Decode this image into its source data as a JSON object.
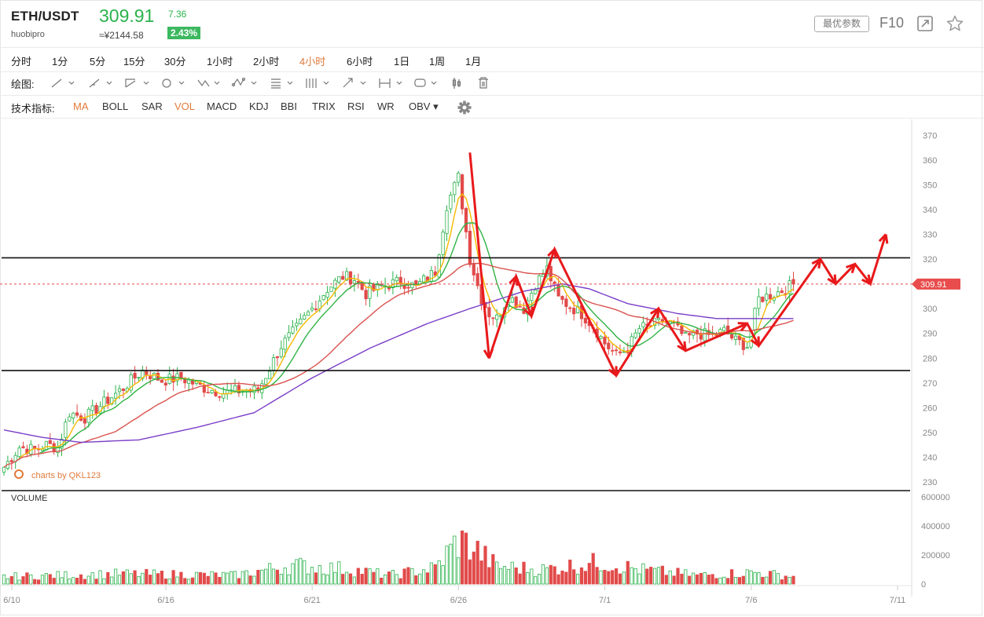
{
  "header": {
    "pair": "ETH/USDT",
    "exchange": "huobipro",
    "price": "309.91",
    "cny_price": "≈¥2144.58",
    "change": "7.36",
    "change_pct": "2.43%",
    "params_button": "最优参数",
    "f10_label": "F10"
  },
  "timeframes": [
    "分时",
    "1分",
    "5分",
    "15分",
    "30分",
    "1小时",
    "2小时",
    "4小时",
    "6小时",
    "1日",
    "1周",
    "1月"
  ],
  "active_timeframe": "4小时",
  "drawing_label": "绘图:",
  "indicators_label": "技术指标:",
  "indicators": [
    "MA",
    "BOLL",
    "SAR",
    "VOL",
    "MACD",
    "KDJ",
    "BBI",
    "TRIX",
    "RSI",
    "WR",
    "OBV"
  ],
  "active_indicators": [
    "MA",
    "VOL"
  ],
  "watermark": "charts by QKL123",
  "volume_label": "VOLUME",
  "colors": {
    "up": "#2bb24c",
    "down": "#e24a4a",
    "ma5": "#f5b800",
    "ma10": "#2fb344",
    "ma30": "#d9534f",
    "ma60": "#7a3dc8",
    "arrow": "#e8191b",
    "accent": "#e07a3c"
  },
  "chart_data": {
    "type": "candlestick",
    "pair": "ETH/USDT",
    "interval": "4h",
    "x_tick_labels": [
      "6/10",
      "6/16",
      "6/21",
      "6/26",
      "7/1",
      "7/6",
      "7/11"
    ],
    "price_axis": {
      "ticks": [
        230,
        240,
        250,
        260,
        270,
        280,
        290,
        300,
        310,
        320,
        330,
        340,
        350,
        360,
        370
      ],
      "range": [
        227,
        373
      ]
    },
    "volume_axis": {
      "ticks": [
        0,
        200000,
        400000,
        600000
      ],
      "tick_labels": [
        "0",
        "200000",
        "400000",
        "600000"
      ],
      "range": [
        0,
        600000
      ]
    },
    "last_price_marker": 309.91,
    "horizontal_lines": [
      320.5,
      275,
      320.5
    ],
    "anchor_closes": [
      [
        0,
        236
      ],
      [
        4,
        244
      ],
      [
        8,
        243
      ],
      [
        11,
        245
      ],
      [
        14,
        244
      ],
      [
        17,
        258
      ],
      [
        21,
        256
      ],
      [
        26,
        262
      ],
      [
        31,
        268
      ],
      [
        36,
        275
      ],
      [
        41,
        271
      ],
      [
        46,
        272
      ],
      [
        52,
        268
      ],
      [
        57,
        266
      ],
      [
        62,
        267
      ],
      [
        66,
        267
      ],
      [
        69,
        276
      ],
      [
        72,
        285
      ],
      [
        76,
        292
      ],
      [
        80,
        300
      ],
      [
        84,
        308
      ],
      [
        88,
        313
      ],
      [
        91,
        312
      ],
      [
        94,
        306
      ],
      [
        98,
        309
      ],
      [
        103,
        311
      ],
      [
        107,
        309
      ],
      [
        112,
        315
      ],
      [
        115,
        342
      ],
      [
        118,
        353
      ],
      [
        121,
        320
      ],
      [
        124,
        304
      ],
      [
        126,
        298
      ],
      [
        128,
        296
      ],
      [
        131,
        305
      ],
      [
        135,
        300
      ],
      [
        138,
        310
      ],
      [
        141,
        316
      ],
      [
        144,
        304
      ],
      [
        147,
        301
      ],
      [
        150,
        298
      ],
      [
        153,
        293
      ],
      [
        156,
        286
      ],
      [
        159,
        281
      ],
      [
        162,
        284
      ],
      [
        165,
        292
      ],
      [
        168,
        293
      ],
      [
        171,
        295
      ],
      [
        174,
        293
      ],
      [
        177,
        288
      ],
      [
        180,
        290
      ],
      [
        184,
        289
      ],
      [
        187,
        291
      ],
      [
        190,
        287
      ],
      [
        193,
        285
      ],
      [
        196,
        304
      ],
      [
        200,
        306
      ],
      [
        203,
        308
      ],
      [
        205,
        309.91
      ]
    ],
    "volume_anchors": [
      [
        0,
        50000
      ],
      [
        30,
        70000
      ],
      [
        60,
        60000
      ],
      [
        75,
        130000
      ],
      [
        90,
        100000
      ],
      [
        100,
        60000
      ],
      [
        112,
        110000
      ],
      [
        118,
        300000
      ],
      [
        122,
        250000
      ],
      [
        128,
        120000
      ],
      [
        140,
        100000
      ],
      [
        155,
        150000
      ],
      [
        165,
        100000
      ],
      [
        180,
        60000
      ],
      [
        195,
        80000
      ],
      [
        205,
        50000
      ]
    ],
    "ma_series": [
      {
        "name": "",
        "period": 5,
        "color_key": "ma5"
      },
      {
        "name": "",
        "period": 10,
        "color_key": "ma10"
      },
      {
        "name": "",
        "period": 30,
        "color_key": "ma30"
      },
      {
        "name": "",
        "period": 60,
        "color_key": "ma60"
      }
    ],
    "ma60_anchors": [
      [
        0,
        251
      ],
      [
        10,
        248
      ],
      [
        20,
        246
      ],
      [
        35,
        247
      ],
      [
        50,
        252
      ],
      [
        65,
        258
      ],
      [
        80,
        272
      ],
      [
        95,
        284
      ],
      [
        110,
        294
      ],
      [
        121,
        300
      ],
      [
        135,
        307
      ],
      [
        145,
        310
      ],
      [
        152,
        308
      ],
      [
        162,
        302
      ],
      [
        175,
        298
      ],
      [
        185,
        296
      ],
      [
        195,
        296
      ],
      [
        205,
        296
      ]
    ],
    "annotation_path": [
      [
        121,
        363
      ],
      [
        126,
        280
      ],
      [
        133,
        313
      ],
      [
        137,
        297
      ],
      [
        143,
        324
      ],
      [
        159,
        273
      ],
      [
        170,
        300
      ],
      [
        177,
        283
      ],
      [
        193,
        294
      ],
      [
        196,
        285
      ],
      [
        212,
        320
      ],
      [
        216,
        310
      ],
      [
        221,
        318
      ],
      [
        225,
        310
      ],
      [
        229,
        330
      ]
    ]
  }
}
